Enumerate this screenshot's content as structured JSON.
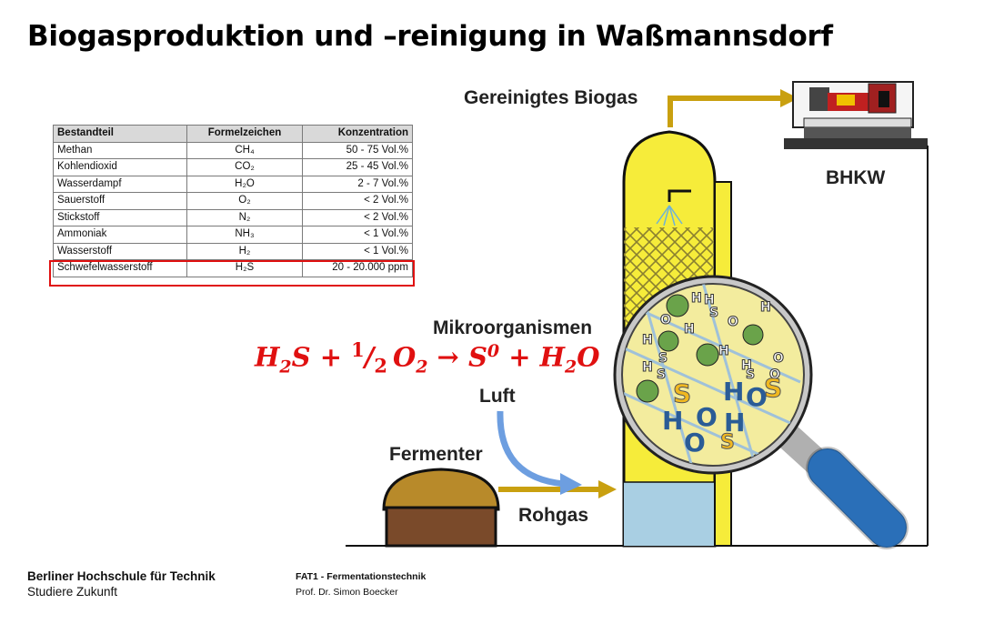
{
  "title": "Biogasproduktion und –reinigung in Waßmannsdorf",
  "table": {
    "headers": [
      "Bestandteil",
      "Formelzeichen",
      "Konzentration"
    ],
    "rows": [
      [
        "Methan",
        "CH₄",
        "50 - 75 Vol.%"
      ],
      [
        "Kohlendioxid",
        "CO₂",
        "25 - 45 Vol.%"
      ],
      [
        "Wasserdampf",
        "H₂O",
        "2 - 7 Vol.%"
      ],
      [
        "Sauerstoff",
        "O₂",
        "< 2 Vol.%"
      ],
      [
        "Stickstoff",
        "N₂",
        "< 2 Vol.%"
      ],
      [
        "Ammoniak",
        "NH₃",
        "< 1 Vol.%"
      ],
      [
        "Wasserstoff",
        "H₂",
        "< 1 Vol.%"
      ],
      [
        "Schwefelwasserstoff",
        "H₂S",
        "20 - 20.000 ppm"
      ]
    ],
    "highlighted_row": 7
  },
  "labels": {
    "biogas": "Gereinigtes Biogas",
    "bhkw": "BHKW",
    "microorganisms": "Mikroorganismen",
    "air": "Luft",
    "fermenter": "Fermenter",
    "raw_gas": "Rohgas"
  },
  "equation": {
    "h2s": "H",
    "h2s_sub": "2",
    "h2s_s": "S",
    "plus1": " + ",
    "half_num": "1",
    "half_slash": "/",
    "half_den": "2",
    "o2": "O",
    "o2_sub": "2",
    "arrow": " → ",
    "s0": "S",
    "s0_sup": "0",
    "plus2": " + ",
    "h2o_h": "H",
    "h2o_sub": "2",
    "h2o_o": "O"
  },
  "magnifier_letters": {
    "small": [
      "H",
      "H",
      "S",
      "O",
      "H",
      "H",
      "S",
      "O",
      "H",
      "S",
      "H",
      "O",
      "H",
      "H",
      "S",
      "O"
    ],
    "big": [
      "S",
      "H",
      "O",
      "S",
      "H",
      "O",
      "H",
      "O",
      "S"
    ]
  },
  "colors": {
    "highlight": "#e01010",
    "arrow_gold": "#c9a010",
    "column_yellow": "#f6ec3a",
    "air_blue": "#6d9ee0",
    "handle_blue": "#2a6fb8"
  },
  "footer": {
    "org": "Berliner Hochschule für Technik",
    "slogan": "Studiere Zukunft",
    "course": "FAT1 - Fermentationstechnik",
    "author": "Prof. Dr. Simon Boecker"
  }
}
